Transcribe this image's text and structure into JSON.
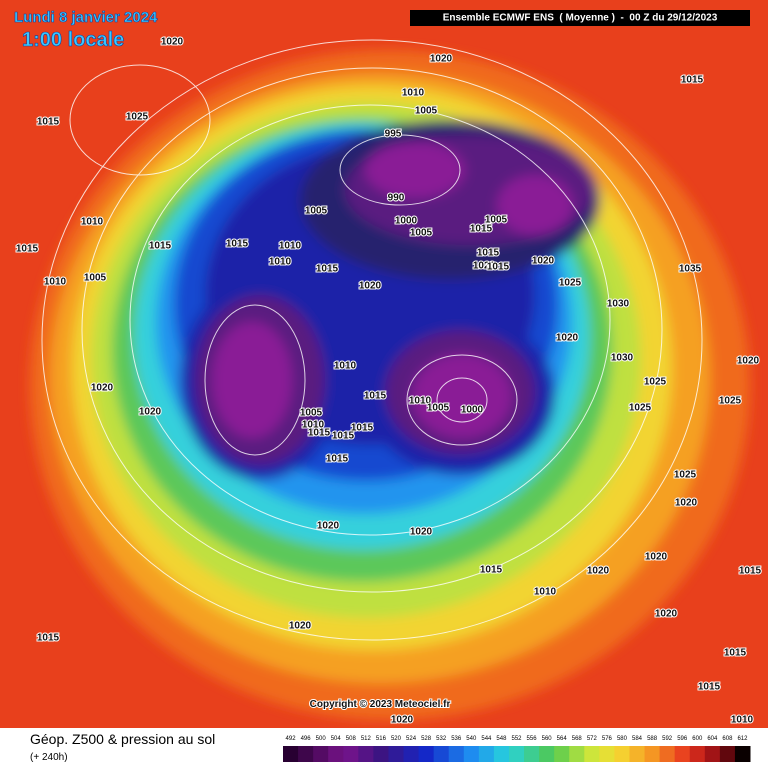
{
  "header": {
    "date": "Lundi 8 janvier 2024",
    "time": "1:00 locale",
    "run": "Ensemble ECMWF ENS  ( Moyenne )  -  00 Z du 29/12/2023"
  },
  "footer": {
    "caption": "Géop. Z500 & pression au sol",
    "lead": "(+ 240h)",
    "copyright": "Copyright © 2023 Meteociel.fr"
  },
  "scale": {
    "values": [
      492,
      496,
      500,
      504,
      508,
      512,
      516,
      520,
      524,
      528,
      532,
      536,
      540,
      544,
      548,
      552,
      556,
      560,
      564,
      568,
      572,
      576,
      580,
      584,
      588,
      592,
      596,
      600,
      604,
      608,
      612
    ]
  },
  "isobar_labels": [
    "1020",
    "1025",
    "1015",
    "1020",
    "1010",
    "1005",
    "995",
    "990",
    "1000",
    "1005",
    "1005",
    "1015",
    "1015",
    "1020",
    "1015",
    "1020",
    "1025",
    "1035",
    "1015",
    "1010",
    "1015",
    "1015",
    "1005",
    "1015",
    "1010",
    "1010",
    "1015",
    "1020",
    "1005",
    "1010",
    "1020",
    "1020",
    "1010",
    "1015",
    "1010",
    "1005",
    "1000",
    "1005",
    "1010",
    "1015",
    "1015",
    "1015",
    "1015",
    "1020",
    "1020",
    "1015",
    "1010",
    "1020",
    "1030",
    "1030",
    "1020",
    "1025",
    "1020",
    "1020",
    "1020",
    "1015",
    "1020",
    "1015",
    "1020",
    "1015",
    "1015",
    "1010",
    "1020",
    "1025",
    "1025",
    "1025"
  ]
}
